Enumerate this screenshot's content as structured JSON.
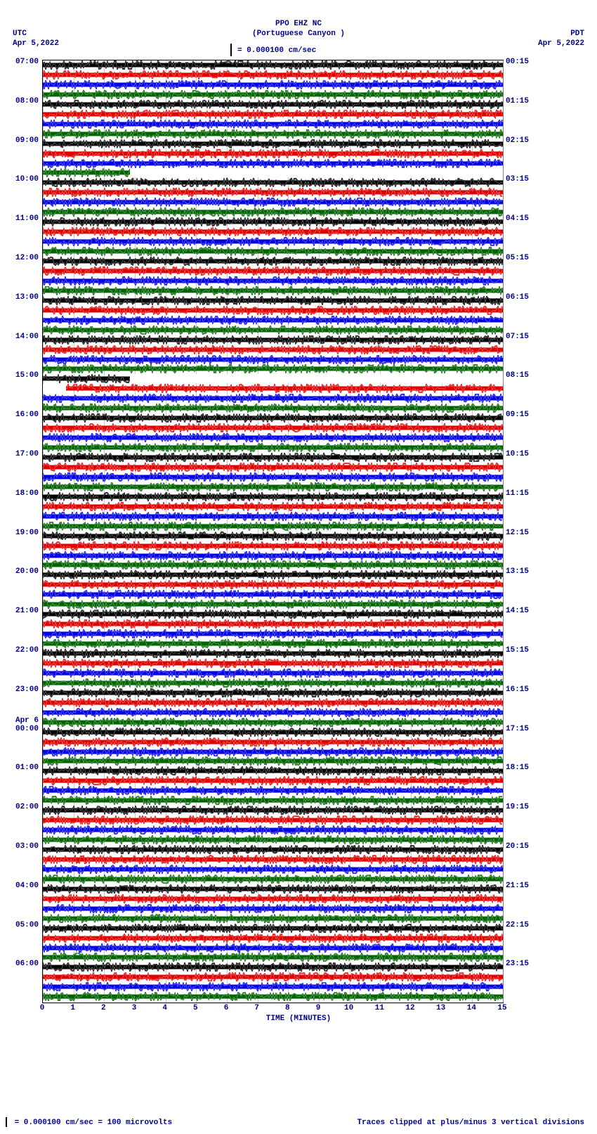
{
  "header": {
    "station": "PPO EHZ NC",
    "location": "(Portuguese Canyon )",
    "left_tz": "UTC",
    "left_date": "Apr 5,2022",
    "right_tz": "PDT",
    "right_date": "Apr 5,2022",
    "scale_text": "= 0.000100 cm/sec"
  },
  "plot": {
    "x_title": "TIME (MINUTES)",
    "x_ticks": [
      0,
      1,
      2,
      3,
      4,
      5,
      6,
      7,
      8,
      9,
      10,
      11,
      12,
      13,
      14,
      15
    ],
    "trace_colors": [
      "#000000",
      "#e00000",
      "#0000e8",
      "#006400"
    ],
    "n_traces": 96,
    "row_height": 13.95,
    "trace_height": 13,
    "left_labels": [
      {
        "row": 0,
        "text": "07:00"
      },
      {
        "row": 4,
        "text": "08:00"
      },
      {
        "row": 8,
        "text": "09:00"
      },
      {
        "row": 12,
        "text": "10:00"
      },
      {
        "row": 16,
        "text": "11:00"
      },
      {
        "row": 20,
        "text": "12:00"
      },
      {
        "row": 24,
        "text": "13:00"
      },
      {
        "row": 28,
        "text": "14:00"
      },
      {
        "row": 32,
        "text": "15:00"
      },
      {
        "row": 36,
        "text": "16:00"
      },
      {
        "row": 40,
        "text": "17:00"
      },
      {
        "row": 44,
        "text": "18:00"
      },
      {
        "row": 48,
        "text": "19:00"
      },
      {
        "row": 52,
        "text": "20:00"
      },
      {
        "row": 56,
        "text": "21:00"
      },
      {
        "row": 60,
        "text": "22:00"
      },
      {
        "row": 64,
        "text": "23:00"
      },
      {
        "row": 68,
        "text": "Apr 6",
        "dy": -12
      },
      {
        "row": 68,
        "text": "00:00"
      },
      {
        "row": 72,
        "text": "01:00"
      },
      {
        "row": 76,
        "text": "02:00"
      },
      {
        "row": 80,
        "text": "03:00"
      },
      {
        "row": 84,
        "text": "04:00"
      },
      {
        "row": 88,
        "text": "05:00"
      },
      {
        "row": 92,
        "text": "06:00"
      }
    ],
    "right_labels": [
      {
        "row": 0,
        "text": "00:15"
      },
      {
        "row": 4,
        "text": "01:15"
      },
      {
        "row": 8,
        "text": "02:15"
      },
      {
        "row": 12,
        "text": "03:15"
      },
      {
        "row": 16,
        "text": "04:15"
      },
      {
        "row": 20,
        "text": "05:15"
      },
      {
        "row": 24,
        "text": "06:15"
      },
      {
        "row": 28,
        "text": "07:15"
      },
      {
        "row": 32,
        "text": "08:15"
      },
      {
        "row": 36,
        "text": "09:15"
      },
      {
        "row": 40,
        "text": "10:15"
      },
      {
        "row": 44,
        "text": "11:15"
      },
      {
        "row": 48,
        "text": "12:15"
      },
      {
        "row": 52,
        "text": "13:15"
      },
      {
        "row": 56,
        "text": "14:15"
      },
      {
        "row": 60,
        "text": "15:15"
      },
      {
        "row": 64,
        "text": "16:15"
      },
      {
        "row": 68,
        "text": "17:15"
      },
      {
        "row": 72,
        "text": "18:15"
      },
      {
        "row": 76,
        "text": "19:15"
      },
      {
        "row": 80,
        "text": "20:15"
      },
      {
        "row": 84,
        "text": "21:15"
      },
      {
        "row": 88,
        "text": "22:15"
      },
      {
        "row": 92,
        "text": "23:15"
      }
    ],
    "gaps": [
      {
        "row": 11,
        "start_pct": 19,
        "end_pct": 100
      },
      {
        "row": 32,
        "start_pct": 19,
        "end_pct": 100
      },
      {
        "row": 33,
        "start_pct": 0,
        "end_pct": 5
      }
    ]
  },
  "footer": {
    "left": "= 0.000100 cm/sec =   100 microvolts",
    "right": "Traces clipped at plus/minus 3 vertical divisions"
  },
  "colors": {
    "text": "#00008b",
    "background": "#ffffff",
    "grid": "rgba(180,180,180,.7)"
  }
}
